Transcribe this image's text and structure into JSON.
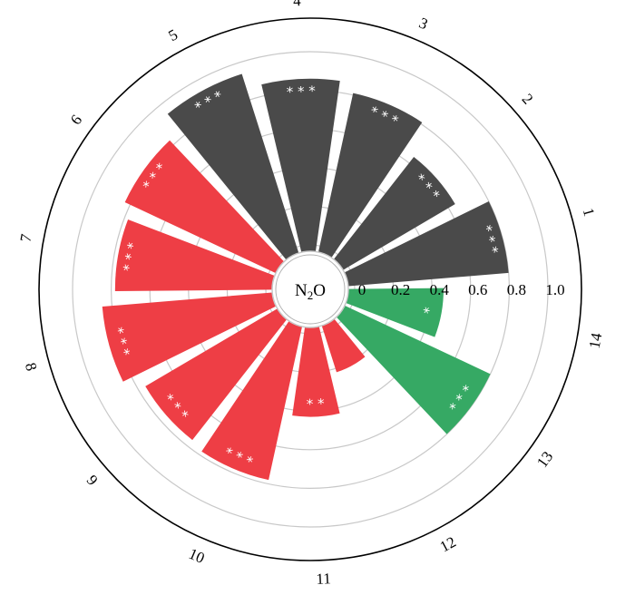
{
  "chart_data": {
    "type": "polar-bar",
    "title": "",
    "center_label": "N2O",
    "radial_ticks": [
      "0",
      "0.2",
      "0.4",
      "0.6",
      "0.8",
      "1.0"
    ],
    "rlim": [
      0,
      1.0
    ],
    "grid": true,
    "categories": [
      "1",
      "2",
      "3",
      "4",
      "5",
      "6",
      "7",
      "8",
      "9",
      "10",
      "11",
      "12",
      "13",
      "14"
    ],
    "values": [
      0.8,
      0.64,
      0.81,
      0.86,
      0.94,
      0.83,
      0.78,
      0.85,
      0.76,
      0.78,
      0.43,
      0.22,
      0.8,
      0.46
    ],
    "significance": [
      "***",
      "***",
      "***",
      "***",
      "***",
      "***",
      "***",
      "***",
      "***",
      "***",
      "**",
      "",
      "***",
      "*"
    ],
    "colors": [
      "#4a4a4a",
      "#4a4a4a",
      "#4a4a4a",
      "#4a4a4a",
      "#4a4a4a",
      "#ee3e45",
      "#ee3e45",
      "#ee3e45",
      "#ee3e45",
      "#ee3e45",
      "#ee3e45",
      "#ee3e45",
      "#36a964",
      "#36a964"
    ]
  }
}
